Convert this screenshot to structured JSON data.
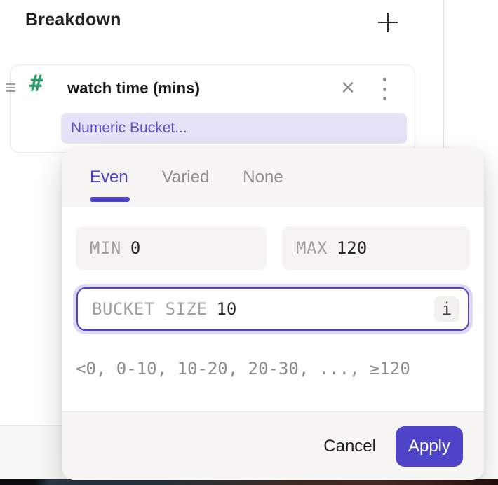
{
  "header": {
    "title": "Breakdown"
  },
  "card": {
    "field": "watch time (mins)",
    "bucketing": "Numeric Bucket..."
  },
  "popup": {
    "tabs": [
      {
        "label": "Even",
        "active": true
      },
      {
        "label": "Varied",
        "active": false
      },
      {
        "label": "None",
        "active": false
      }
    ],
    "fields": {
      "min_label": "MIN",
      "min_value": "0",
      "max_label": "MAX",
      "max_value": "120",
      "bucket_label": "BUCKET SIZE",
      "bucket_value": "10"
    },
    "preview": "<0, 0-10, 10-20, 20-30, ..., ≥120",
    "actions": {
      "cancel": "Cancel",
      "apply": "Apply"
    }
  },
  "icons": {
    "hash_glyph": "#",
    "close_glyph": "×",
    "info_glyph": "i"
  },
  "colors": {
    "accent": "#4f43c8",
    "accent_text": "#4a3fc6",
    "hash_green": "#2e9a6a",
    "pill_bg": "#e6e3f8",
    "pill_text": "#5b50c8",
    "label_gray": "#a09f9b",
    "value_dark": "#262626",
    "muted_gray": "#8f8e8b",
    "field_bg": "#f5f4f2",
    "panel_bg": "#f6f5f3"
  }
}
